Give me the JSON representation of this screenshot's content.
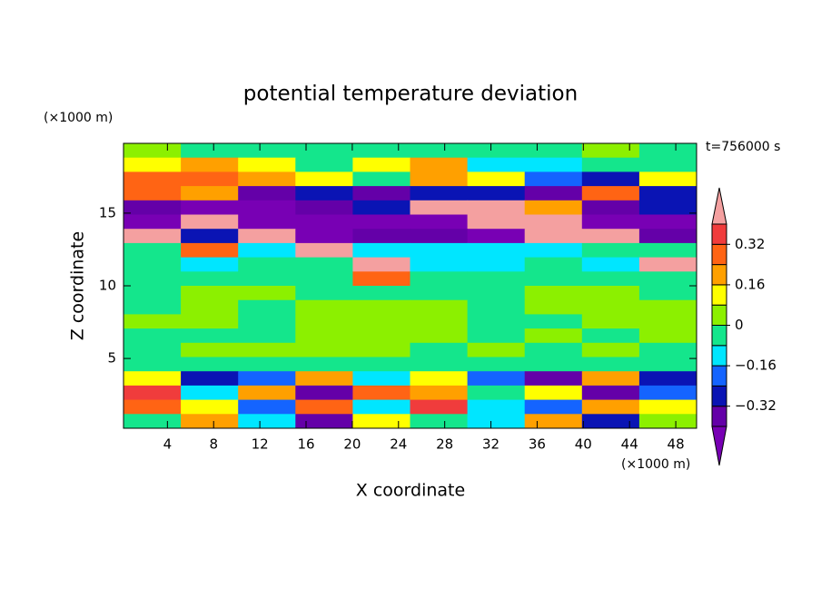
{
  "chart_data": {
    "type": "contour",
    "title": "potential temperature deviation",
    "xlabel": "X coordinate",
    "ylabel": "Z coordinate",
    "xunit": "(×1000 m)",
    "yunit": "(×1000 m)",
    "annotation": "t=756000 s",
    "xlim": [
      0.2,
      49.8
    ],
    "ylim": [
      0.2,
      19.8
    ],
    "xticks": [
      4,
      8,
      12,
      16,
      20,
      24,
      28,
      32,
      36,
      40,
      44,
      48
    ],
    "yticks": [
      5,
      10,
      15
    ],
    "x": [
      2.68,
      7.64,
      12.6,
      17.56,
      22.52,
      27.48,
      32.44,
      37.4,
      42.36,
      47.32
    ],
    "y": [
      19.31,
      18.33,
      17.35,
      16.37,
      15.39,
      14.41,
      13.43,
      12.45,
      11.47,
      10.49,
      9.51,
      8.53,
      7.55,
      6.57,
      5.59,
      4.61,
      3.63,
      2.65,
      1.67,
      0.69
    ],
    "z": [
      [
        0.02,
        -0.04,
        -0.04,
        -0.04,
        -0.04,
        -0.04,
        -0.04,
        -0.04,
        0.02,
        -0.04
      ],
      [
        0.1,
        0.2,
        0.1,
        -0.04,
        0.1,
        0.2,
        -0.12,
        -0.12,
        -0.04,
        -0.04
      ],
      [
        0.3,
        0.3,
        0.2,
        0.1,
        -0.04,
        0.2,
        0.1,
        -0.2,
        -0.3,
        0.1
      ],
      [
        0.3,
        0.2,
        -0.36,
        -0.3,
        -0.36,
        -0.3,
        -0.25,
        -0.36,
        0.3,
        -0.3
      ],
      [
        -0.36,
        -0.45,
        -0.45,
        -0.36,
        -0.3,
        0.45,
        0.45,
        0.2,
        -0.36,
        -0.3
      ],
      [
        -0.45,
        0.45,
        -0.45,
        -0.45,
        -0.45,
        -0.45,
        0.45,
        0.45,
        -0.45,
        -0.45
      ],
      [
        0.45,
        -0.25,
        0.45,
        -0.45,
        -0.36,
        -0.36,
        -0.45,
        0.45,
        0.45,
        -0.36
      ],
      [
        -0.04,
        0.3,
        -0.12,
        0.45,
        -0.12,
        -0.12,
        -0.12,
        -0.12,
        -0.04,
        -0.04
      ],
      [
        -0.04,
        -0.12,
        -0.04,
        -0.04,
        0.45,
        -0.12,
        -0.12,
        -0.04,
        -0.12,
        0.45
      ],
      [
        -0.04,
        -0.04,
        -0.04,
        -0.04,
        0.3,
        -0.04,
        -0.04,
        -0.04,
        -0.04,
        -0.04
      ],
      [
        -0.04,
        0.02,
        0.02,
        -0.04,
        -0.04,
        -0.04,
        -0.04,
        0.02,
        0.02,
        -0.04
      ],
      [
        -0.04,
        0.02,
        -0.04,
        0.02,
        0.02,
        0.02,
        -0.04,
        0.02,
        0.02,
        0.02
      ],
      [
        0.02,
        0.02,
        -0.04,
        0.02,
        0.02,
        0.02,
        -0.04,
        -0.04,
        0.02,
        0.02
      ],
      [
        -0.04,
        -0.04,
        -0.04,
        0.02,
        0.02,
        0.02,
        -0.04,
        0.02,
        -0.04,
        0.02
      ],
      [
        -0.04,
        0.02,
        0.02,
        0.02,
        0.02,
        -0.04,
        0.02,
        -0.04,
        0.02,
        -0.04
      ],
      [
        -0.04,
        -0.04,
        -0.04,
        -0.04,
        -0.04,
        -0.04,
        -0.04,
        -0.04,
        -0.04,
        -0.04
      ],
      [
        0.1,
        -0.3,
        -0.2,
        0.2,
        -0.12,
        0.1,
        -0.2,
        -0.36,
        0.2,
        -0.3
      ],
      [
        0.36,
        -0.12,
        0.2,
        -0.36,
        0.3,
        0.2,
        -0.04,
        0.1,
        -0.36,
        -0.2
      ],
      [
        0.3,
        0.1,
        -0.2,
        0.3,
        -0.12,
        0.36,
        -0.12,
        -0.2,
        0.2,
        0.1
      ],
      [
        -0.04,
        0.2,
        -0.12,
        -0.36,
        0.1,
        -0.04,
        -0.12,
        0.2,
        -0.3,
        0.02
      ]
    ],
    "levels": [
      -0.4,
      -0.32,
      -0.24,
      -0.16,
      -0.08,
      0,
      0.08,
      0.16,
      0.24,
      0.32,
      0.4
    ],
    "colors": [
      "#7800b4",
      "#6400a8",
      "#0a14b4",
      "#1464ff",
      "#00e6ff",
      "#14e68c",
      "#8cf000",
      "#ffff00",
      "#ffa000",
      "#ff6414",
      "#f03c3c",
      "#f4a0a0"
    ],
    "colorbar_ticks": [
      0.32,
      0.16,
      0,
      {
        "value": -0.16,
        "label": "−0.16"
      },
      {
        "value": -0.32,
        "label": "−0.32"
      }
    ]
  }
}
